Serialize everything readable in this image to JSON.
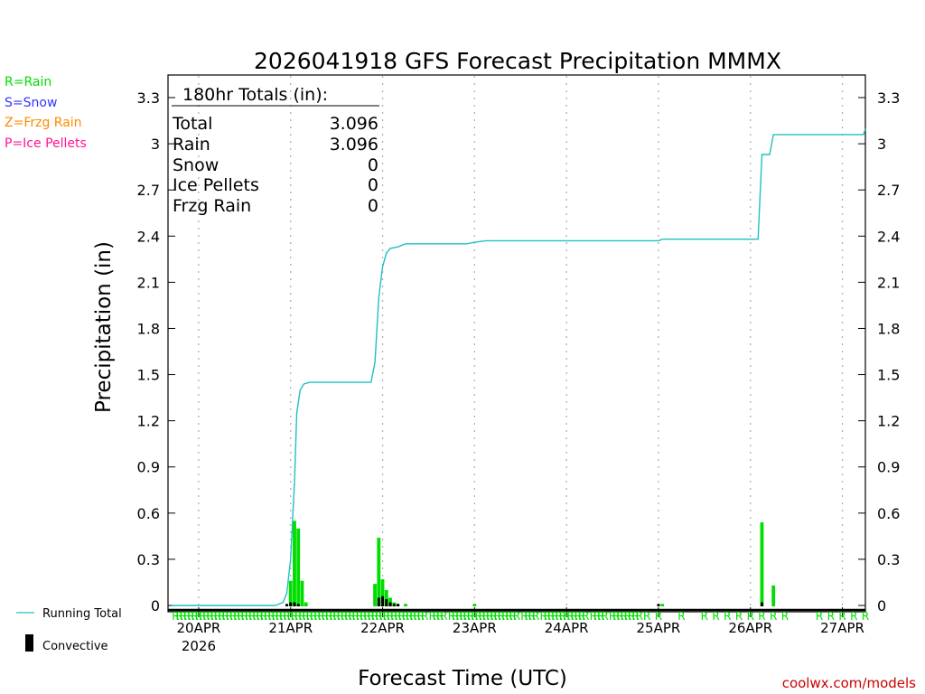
{
  "colors": {
    "rain": "#00dd00",
    "snow": "#3333ff",
    "frzg": "#ff8800",
    "ice": "#ff1493",
    "running": "#20c0c0",
    "convective": "#000000",
    "source": "#cc0000",
    "grid": "#b0b0b0"
  },
  "key": {
    "rain": "R=Rain",
    "snow": "S=Snow",
    "frzg": "Z=Frzg Rain",
    "ice": "P=Ice Pellets"
  },
  "totals": {
    "header": "180hr Totals (in):",
    "rows": [
      {
        "label": "Total",
        "value": "3.096"
      },
      {
        "label": "Rain",
        "value": "3.096"
      },
      {
        "label": "Snow",
        "value": "0"
      },
      {
        "label": "Ice Pellets",
        "value": "0"
      },
      {
        "label": "Frzg Rain",
        "value": "0"
      }
    ]
  },
  "legend": {
    "running_total": "Running Total",
    "convective": "Convective"
  },
  "source": "coolwx.com/models",
  "ptype_marker": "R",
  "chart_data": {
    "type": "bar",
    "title": "2026041918 GFS Forecast Precipitation MMMX",
    "xlabel": "Forecast Time (UTC)",
    "ylabel": "Precipitation (in)",
    "ylim": [
      0,
      3.3
    ],
    "yticks": [
      "0",
      "0.3",
      "0.6",
      "0.9",
      "1.2",
      "1.5",
      "1.8",
      "2.1",
      "2.4",
      "2.7",
      "3",
      "3.3"
    ],
    "ytick_values": [
      0,
      0.3,
      0.6,
      0.9,
      1.2,
      1.5,
      1.8,
      2.1,
      2.4,
      2.7,
      3.0,
      3.3
    ],
    "xlim_hours": [
      -2,
      180
    ],
    "x_unit": "hours after 2026041918 UTC",
    "xticks": [
      {
        "hour": 6,
        "label": "20APR",
        "sublabel": "2026"
      },
      {
        "hour": 30,
        "label": "21APR"
      },
      {
        "hour": 54,
        "label": "22APR"
      },
      {
        "hour": 78,
        "label": "23APR"
      },
      {
        "hour": 102,
        "label": "24APR"
      },
      {
        "hour": 126,
        "label": "25APR"
      },
      {
        "hour": 150,
        "label": "26APR"
      },
      {
        "hour": 174,
        "label": "27APR"
      }
    ],
    "series": [
      {
        "name": "Rain",
        "type": "bar",
        "points": [
          {
            "hour": 30,
            "value": 0.16
          },
          {
            "hour": 31,
            "value": 0.55
          },
          {
            "hour": 32,
            "value": 0.5
          },
          {
            "hour": 33,
            "value": 0.16
          },
          {
            "hour": 34,
            "value": 0.02
          },
          {
            "hour": 52,
            "value": 0.14
          },
          {
            "hour": 53,
            "value": 0.44
          },
          {
            "hour": 54,
            "value": 0.17
          },
          {
            "hour": 55,
            "value": 0.1
          },
          {
            "hour": 56,
            "value": 0.05
          },
          {
            "hour": 57,
            "value": 0.02
          },
          {
            "hour": 58,
            "value": 0.01
          },
          {
            "hour": 60,
            "value": 0.01
          },
          {
            "hour": 78,
            "value": 0.01
          },
          {
            "hour": 127,
            "value": 0.01
          },
          {
            "hour": 153,
            "value": 0.54
          },
          {
            "hour": 156,
            "value": 0.13
          }
        ]
      },
      {
        "name": "Convective",
        "type": "bar",
        "points": [
          {
            "hour": 29,
            "value": 0.01
          },
          {
            "hour": 30,
            "value": 0.02
          },
          {
            "hour": 31,
            "value": 0.02
          },
          {
            "hour": 32,
            "value": 0.01
          },
          {
            "hour": 53,
            "value": 0.05
          },
          {
            "hour": 54,
            "value": 0.06
          },
          {
            "hour": 55,
            "value": 0.04
          },
          {
            "hour": 56,
            "value": 0.02
          },
          {
            "hour": 57,
            "value": 0.01
          },
          {
            "hour": 58,
            "value": 0.01
          },
          {
            "hour": 126,
            "value": 0.01
          },
          {
            "hour": 153,
            "value": 0.02
          }
        ]
      },
      {
        "name": "Running Total",
        "type": "line",
        "points": [
          {
            "hour": -1,
            "value": 0
          },
          {
            "hour": 26,
            "value": 0
          },
          {
            "hour": 28,
            "value": 0.02
          },
          {
            "hour": 29,
            "value": 0.08
          },
          {
            "hour": 30,
            "value": 0.3
          },
          {
            "hour": 31,
            "value": 0.8
          },
          {
            "hour": 31.6,
            "value": 1.25
          },
          {
            "hour": 32.5,
            "value": 1.4
          },
          {
            "hour": 33.5,
            "value": 1.44
          },
          {
            "hour": 35,
            "value": 1.45
          },
          {
            "hour": 51,
            "value": 1.45
          },
          {
            "hour": 52,
            "value": 1.58
          },
          {
            "hour": 53,
            "value": 2.0
          },
          {
            "hour": 54,
            "value": 2.2
          },
          {
            "hour": 55,
            "value": 2.29
          },
          {
            "hour": 56,
            "value": 2.32
          },
          {
            "hour": 58,
            "value": 2.33
          },
          {
            "hour": 60,
            "value": 2.35
          },
          {
            "hour": 76,
            "value": 2.35
          },
          {
            "hour": 78,
            "value": 2.36
          },
          {
            "hour": 81,
            "value": 2.37
          },
          {
            "hour": 126,
            "value": 2.37
          },
          {
            "hour": 127,
            "value": 2.38
          },
          {
            "hour": 152,
            "value": 2.38
          },
          {
            "hour": 153,
            "value": 2.93
          },
          {
            "hour": 155,
            "value": 2.93
          },
          {
            "hour": 156,
            "value": 3.06
          },
          {
            "hour": 179.5,
            "value": 3.06
          },
          {
            "hour": 180,
            "value": 3.096
          }
        ]
      }
    ],
    "ptype_hours": [
      0,
      1,
      2,
      3,
      4,
      5,
      6,
      7,
      8,
      9,
      10,
      11,
      12,
      13,
      14,
      15,
      16,
      17,
      18,
      19,
      20,
      21,
      22,
      23,
      24,
      25,
      26,
      27,
      28,
      29,
      30,
      31,
      32,
      33,
      34,
      35,
      36,
      37,
      38,
      39,
      40,
      41,
      42,
      43,
      44,
      45,
      46,
      47,
      48,
      49,
      50,
      51,
      52,
      53,
      54,
      55,
      56,
      57,
      58,
      59,
      60,
      61,
      62,
      63,
      64,
      65,
      67,
      68,
      69,
      70,
      72,
      73,
      74,
      75,
      76,
      77,
      78,
      79,
      80,
      81,
      82,
      83,
      84,
      85,
      86,
      87,
      88,
      89,
      91,
      92,
      93,
      94,
      96,
      97,
      98,
      99,
      100,
      101,
      102,
      103,
      104,
      105,
      106,
      107,
      109,
      110,
      111,
      112,
      114,
      115,
      116,
      117,
      118,
      119,
      120,
      121,
      123,
      126,
      132,
      138,
      141,
      144,
      147,
      150,
      153,
      156,
      159,
      168,
      171,
      174,
      177,
      180
    ]
  }
}
